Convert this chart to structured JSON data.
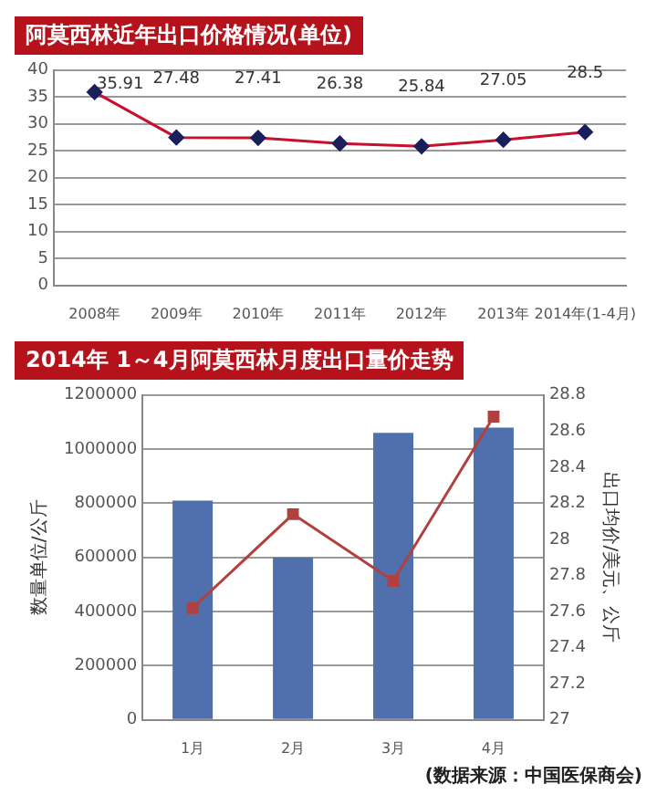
{
  "chart_data": [
    {
      "type": "line",
      "title": "阿莫西林近年出口价格情况(单位)",
      "categories": [
        "2008年",
        "2009年",
        "2010年",
        "2011年",
        "2012年",
        "2013年",
        "2014年(1-4月)"
      ],
      "series": [
        {
          "color": "#c8102e",
          "values": [
            35.91,
            27.48,
            27.41,
            26.38,
            25.84,
            27.05,
            28.5
          ]
        }
      ],
      "ylim": [
        0,
        40
      ],
      "yticks": [
        0,
        5,
        10,
        15,
        20,
        25,
        30,
        35,
        40
      ],
      "grid": "y",
      "data_labels": true,
      "marker": "diamond",
      "legend": false
    },
    {
      "type": "bar",
      "title": "2014年 1～4月阿莫西林月度出口量价走势",
      "categories": [
        "1月",
        "2月",
        "3月",
        "4月"
      ],
      "series": [
        {
          "type": "bar",
          "color": "#4f6fad",
          "values": [
            810000,
            600000,
            1060000,
            1080000
          ]
        },
        {
          "type": "line",
          "axis": "y2",
          "color": "#b0413e",
          "values": [
            27.62,
            28.14,
            27.77,
            28.68
          ]
        }
      ],
      "ylim": [
        0,
        1200000
      ],
      "yticks": [
        0,
        200000,
        400000,
        600000,
        800000,
        1000000,
        1200000
      ],
      "y2lim": [
        27,
        28.8
      ],
      "y2ticks": [
        27,
        27.2,
        27.4,
        27.6,
        27.8,
        28,
        28.2,
        28.4,
        28.6,
        28.8
      ],
      "ylabel": "数量单位/公斤",
      "y2label": "出口均价/美元、公斤",
      "grid": "y",
      "marker": "square",
      "legend": false,
      "annotations": [
        "(数据来源：中国医保商会)"
      ]
    }
  ]
}
